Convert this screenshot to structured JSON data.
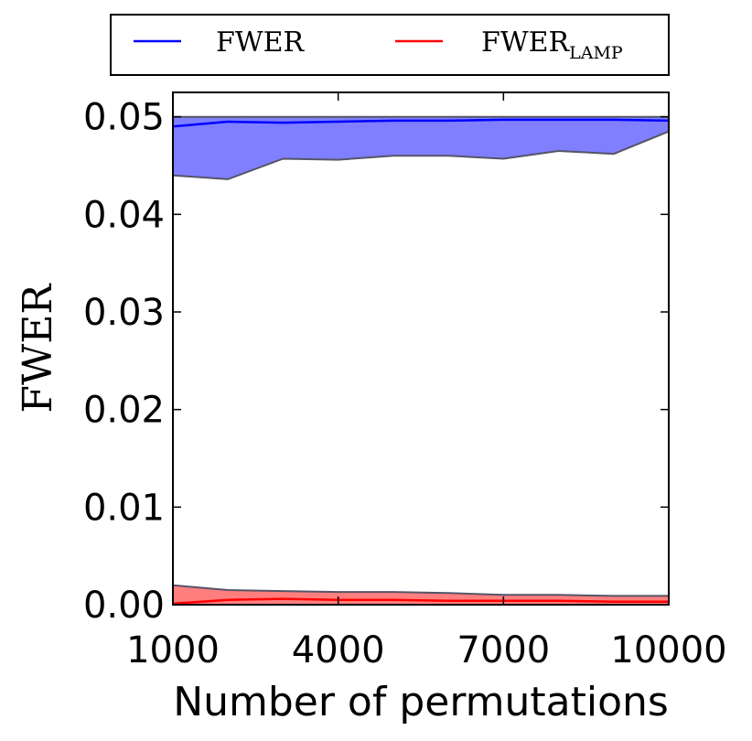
{
  "chart_data": {
    "type": "line",
    "xlabel": "Number of permutations",
    "ylabel": "FWER",
    "xlim": [
      1000,
      10000
    ],
    "ylim": [
      0.0,
      0.0525
    ],
    "x_ticks": [
      1000,
      4000,
      7000,
      10000
    ],
    "x_tick_labels": [
      "1000",
      "4000",
      "7000",
      "10000"
    ],
    "y_ticks": [
      0.0,
      0.01,
      0.02,
      0.03,
      0.04,
      0.05
    ],
    "y_tick_labels": [
      "0.00",
      "0.01",
      "0.02",
      "0.03",
      "0.04",
      "0.05"
    ],
    "grid": false,
    "legend_position": "above plot",
    "x": [
      1000,
      2000,
      3000,
      4000,
      5000,
      6000,
      7000,
      8000,
      9000,
      10000
    ],
    "series": [
      {
        "key": "fwer",
        "name": "FWER",
        "color": "#0000ff",
        "fill_color": "#7f7fff",
        "values": [
          0.049,
          0.0495,
          0.0494,
          0.0495,
          0.0496,
          0.0496,
          0.0497,
          0.0497,
          0.0497,
          0.0496
        ],
        "upper": [
          0.05,
          0.05,
          0.05,
          0.05,
          0.05,
          0.05,
          0.05,
          0.05,
          0.05,
          0.05
        ],
        "lower": [
          0.044,
          0.0436,
          0.0457,
          0.0456,
          0.046,
          0.046,
          0.0457,
          0.0465,
          0.0462,
          0.0485
        ]
      },
      {
        "key": "fwer_lamp",
        "name": "FWER",
        "name_subscript": "LAMP",
        "color": "#ff0000",
        "fill_color": "#ff7f7f",
        "values": [
          0.0001,
          0.0005,
          0.0006,
          0.0005,
          0.0005,
          0.0004,
          0.0004,
          0.0004,
          0.0003,
          0.0003
        ],
        "upper": [
          0.002,
          0.0015,
          0.0014,
          0.0013,
          0.0013,
          0.0012,
          0.001,
          0.001,
          0.0009,
          0.0009
        ],
        "lower": [
          0.0,
          0.0,
          0.0,
          0.0,
          0.0,
          0.0,
          0.0,
          0.0,
          0.0,
          0.0
        ]
      }
    ]
  }
}
